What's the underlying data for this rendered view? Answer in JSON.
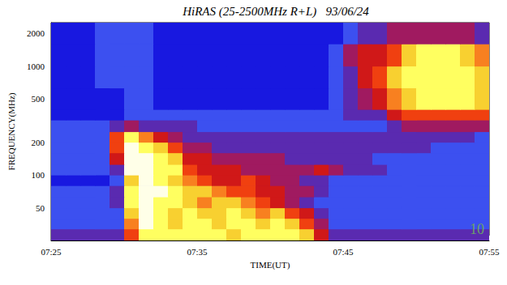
{
  "chart_data": {
    "type": "heatmap",
    "title": "HiRAS (25-2500MHz R+L)   93/06/24",
    "xlabel": "TIME(UT)",
    "ylabel": "FREQUENCY(MHz)",
    "log": "y",
    "xlim": [
      445,
      475
    ],
    "xticks": [
      {
        "value": 445,
        "label": "07:25"
      },
      {
        "value": 455,
        "label": "07:35"
      },
      {
        "value": 465,
        "label": "07:45"
      },
      {
        "value": 475,
        "label": "07:55"
      }
    ],
    "ylim": [
      25,
      2500
    ],
    "yticks": [
      50,
      100,
      200,
      500,
      1000,
      2000
    ],
    "annotations": [
      "10"
    ],
    "time_edges": [
      445,
      446,
      447,
      448,
      449,
      450,
      451,
      452,
      453,
      454,
      455,
      456,
      457,
      458,
      459,
      460,
      461,
      462,
      463,
      464,
      465,
      466,
      467,
      468,
      469,
      470,
      471,
      472,
      473,
      474,
      475
    ],
    "frequency_edges": [
      25,
      32,
      40,
      50,
      63,
      80,
      100,
      125,
      160,
      200,
      250,
      320,
      400,
      630,
      1000,
      1600,
      2500
    ],
    "intensity_range": [
      0,
      10
    ],
    "cells": [
      [
        3,
        3,
        3,
        3,
        3,
        6,
        9,
        9,
        9,
        9,
        9,
        9,
        8,
        9,
        9,
        9,
        9,
        8,
        5,
        3,
        3,
        3,
        3,
        3,
        3,
        3,
        3,
        3,
        3,
        3
      ],
      [
        2,
        2,
        2,
        2,
        2,
        7,
        10,
        9,
        8,
        9,
        9,
        8,
        9,
        9,
        8,
        9,
        8,
        6,
        4,
        2,
        2,
        2,
        2,
        2,
        2,
        2,
        2,
        2,
        2,
        2
      ],
      [
        2,
        2,
        2,
        2,
        2,
        8,
        10,
        9,
        8,
        9,
        8,
        8,
        9,
        8,
        7,
        8,
        6,
        5,
        3,
        2,
        2,
        2,
        2,
        2,
        2,
        2,
        2,
        2,
        2,
        2
      ],
      [
        2,
        2,
        2,
        2,
        3,
        9,
        10,
        9,
        9,
        8,
        7,
        8,
        8,
        7,
        6,
        5,
        4,
        3,
        2,
        2,
        2,
        2,
        2,
        2,
        2,
        2,
        2,
        2,
        2,
        2
      ],
      [
        2,
        2,
        2,
        2,
        3,
        9,
        10,
        10,
        9,
        8,
        8,
        7,
        6,
        6,
        5,
        5,
        4,
        4,
        3,
        2,
        2,
        2,
        2,
        2,
        2,
        2,
        2,
        2,
        2,
        2
      ],
      [
        1,
        1,
        1,
        1,
        2,
        8,
        10,
        9,
        8,
        7,
        6,
        5,
        5,
        6,
        5,
        4,
        4,
        3,
        3,
        2,
        2,
        2,
        2,
        2,
        2,
        2,
        2,
        2,
        2,
        2
      ],
      [
        2,
        2,
        2,
        2,
        3,
        10,
        10,
        9,
        9,
        6,
        5,
        5,
        5,
        4,
        4,
        4,
        4,
        4,
        5,
        4,
        3,
        3,
        3,
        2,
        2,
        2,
        2,
        2,
        2,
        2
      ],
      [
        2,
        2,
        2,
        2,
        5,
        10,
        10,
        9,
        8,
        5,
        5,
        4,
        4,
        4,
        4,
        4,
        3,
        3,
        3,
        3,
        3,
        3,
        2,
        2,
        2,
        2,
        2,
        2,
        2,
        2
      ],
      [
        2,
        2,
        2,
        2,
        6,
        10,
        9,
        8,
        6,
        4,
        4,
        3,
        3,
        3,
        3,
        3,
        3,
        3,
        3,
        3,
        3,
        3,
        3,
        3,
        3,
        3,
        2,
        2,
        2,
        2
      ],
      [
        2,
        2,
        2,
        2,
        6,
        9,
        7,
        5,
        4,
        3,
        3,
        3,
        3,
        3,
        3,
        3,
        3,
        3,
        3,
        3,
        3,
        3,
        3,
        3,
        3,
        3,
        3,
        3,
        3,
        2
      ],
      [
        2,
        2,
        2,
        2,
        3,
        4,
        3,
        3,
        3,
        3,
        2,
        2,
        2,
        2,
        2,
        2,
        2,
        2,
        2,
        2,
        2,
        2,
        2,
        3,
        4,
        4,
        4,
        4,
        4,
        4
      ],
      [
        1,
        1,
        1,
        1,
        1,
        2,
        2,
        2,
        2,
        2,
        2,
        2,
        2,
        2,
        2,
        2,
        2,
        2,
        2,
        2,
        3,
        3,
        3,
        5,
        6,
        6,
        6,
        6,
        6,
        6
      ],
      [
        1,
        1,
        1,
        1,
        1,
        2,
        2,
        1,
        1,
        1,
        1,
        1,
        1,
        1,
        1,
        1,
        1,
        1,
        1,
        2,
        3,
        4,
        5,
        7,
        8,
        9,
        9,
        9,
        9,
        8
      ],
      [
        1,
        1,
        1,
        2,
        2,
        2,
        2,
        1,
        1,
        1,
        1,
        1,
        1,
        1,
        1,
        1,
        1,
        1,
        1,
        2,
        3,
        5,
        6,
        8,
        9,
        9,
        9,
        9,
        9,
        8
      ],
      [
        1,
        1,
        1,
        2,
        2,
        2,
        2,
        1,
        1,
        1,
        1,
        1,
        1,
        1,
        1,
        1,
        1,
        1,
        1,
        2,
        4,
        5,
        5,
        6,
        8,
        9,
        9,
        9,
        8,
        7
      ],
      [
        1,
        1,
        1,
        2,
        2,
        2,
        2,
        1,
        1,
        1,
        1,
        1,
        1,
        1,
        1,
        1,
        1,
        1,
        1,
        1,
        2,
        3,
        3,
        4,
        4,
        4,
        4,
        4,
        4,
        3
      ]
    ]
  }
}
